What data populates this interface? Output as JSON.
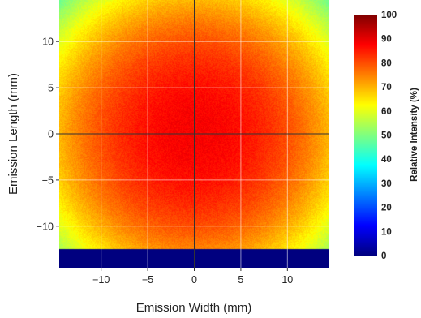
{
  "chart_data": {
    "type": "heatmap",
    "title": "",
    "xlabel": "Emission Width (mm)",
    "ylabel": "Emission Length (mm)",
    "xlim": [
      -14.5,
      14.5
    ],
    "ylim": [
      -14.5,
      14.5
    ],
    "x_ticks": [
      -10,
      -5,
      0,
      5,
      10
    ],
    "x_tick_labels": [
      "−10",
      "−5",
      "0",
      "5",
      "10"
    ],
    "y_ticks": [
      -10,
      -5,
      0,
      5,
      10
    ],
    "y_tick_labels": [
      "−10",
      "−5",
      "0",
      "5",
      "10"
    ],
    "grid": true,
    "crosshair_at": [
      0,
      0
    ],
    "intensity_model": {
      "center": [
        0,
        0
      ],
      "peak_value": 88,
      "edge_value_at_corner": 48,
      "masked_region_y_below": -12.5,
      "masked_value": 0
    },
    "colorbar": {
      "label": "Relative Intensity (%)",
      "range": [
        0,
        100
      ],
      "ticks": [
        0,
        10,
        20,
        30,
        40,
        50,
        60,
        70,
        80,
        90,
        100
      ],
      "tick_labels": [
        "0",
        "10",
        "20",
        "30",
        "40",
        "50",
        "60",
        "70",
        "80",
        "90",
        "100"
      ],
      "colormap": "jet",
      "colormap_stops": [
        "#00007f",
        "#0000ff",
        "#007fff",
        "#00ffff",
        "#7fff7f",
        "#ffff00",
        "#ff7f00",
        "#ff0000",
        "#7f0000"
      ]
    }
  }
}
